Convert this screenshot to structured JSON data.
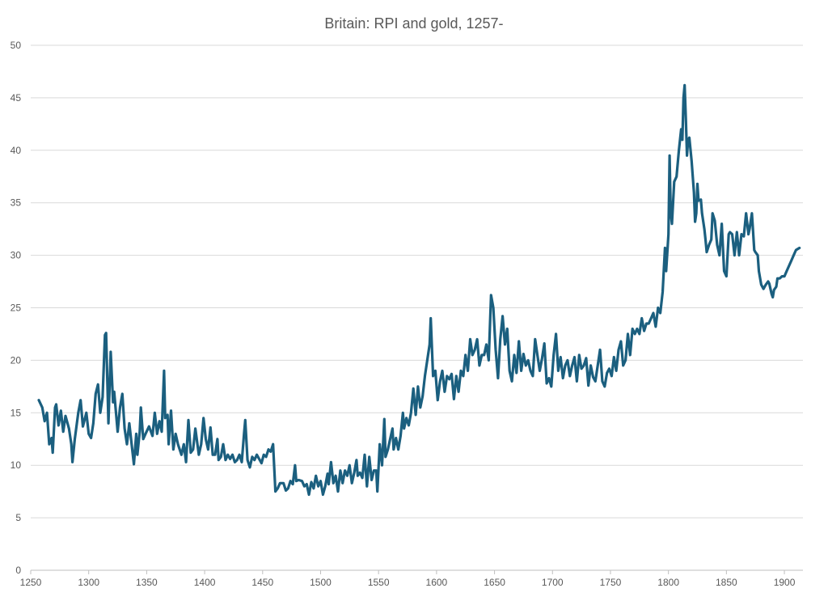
{
  "chart_data": {
    "type": "line",
    "title": "Britain: RPI and gold, 1257-",
    "xlabel": "",
    "ylabel": "",
    "xlim": [
      1250,
      1916
    ],
    "ylim": [
      0,
      50
    ],
    "x_ticks": [
      1250,
      1300,
      1350,
      1400,
      1450,
      1500,
      1550,
      1600,
      1650,
      1700,
      1750,
      1800,
      1850,
      1900
    ],
    "y_ticks": [
      0,
      5,
      10,
      15,
      20,
      25,
      30,
      35,
      40,
      45,
      50
    ],
    "grid": true,
    "legend": "none",
    "color": "#1b5f7f",
    "series": [
      {
        "name": "RPI and gold",
        "x": [
          1257,
          1260,
          1262,
          1264,
          1266,
          1268,
          1269,
          1271,
          1272,
          1274,
          1276,
          1278,
          1280,
          1283,
          1285,
          1286,
          1288,
          1291,
          1293,
          1295,
          1298,
          1300,
          1302,
          1304,
          1306,
          1308,
          1310,
          1312,
          1314,
          1315,
          1317,
          1319,
          1321,
          1322,
          1325,
          1327,
          1329,
          1331,
          1333,
          1335,
          1337,
          1339,
          1341,
          1342,
          1344,
          1345,
          1347,
          1349,
          1352,
          1355,
          1357,
          1359,
          1361,
          1363,
          1365,
          1366,
          1368,
          1369,
          1371,
          1373,
          1375,
          1377,
          1380,
          1382,
          1384,
          1386,
          1388,
          1390,
          1392,
          1395,
          1397,
          1399,
          1401,
          1403,
          1405,
          1407,
          1409,
          1411,
          1412,
          1414,
          1416,
          1418,
          1420,
          1422,
          1424,
          1426,
          1428,
          1430,
          1432,
          1434,
          1435,
          1437,
          1439,
          1441,
          1443,
          1445,
          1447,
          1449,
          1451,
          1453,
          1455,
          1457,
          1459,
          1461,
          1463,
          1465,
          1468,
          1470,
          1472,
          1474,
          1476,
          1478,
          1479,
          1481,
          1484,
          1486,
          1488,
          1490,
          1492,
          1494,
          1496,
          1498,
          1500,
          1502,
          1504,
          1506,
          1507,
          1509,
          1511,
          1513,
          1515,
          1517,
          1519,
          1521,
          1523,
          1525,
          1527,
          1529,
          1531,
          1532,
          1534,
          1536,
          1538,
          1540,
          1542,
          1544,
          1546,
          1548,
          1549,
          1551,
          1553,
          1555,
          1556,
          1558,
          1560,
          1562,
          1563,
          1565,
          1567,
          1569,
          1571,
          1572,
          1574,
          1576,
          1578,
          1580,
          1582,
          1584,
          1586,
          1588,
          1590,
          1592,
          1594,
          1595,
          1597,
          1599,
          1601,
          1603,
          1605,
          1607,
          1609,
          1611,
          1613,
          1615,
          1617,
          1619,
          1621,
          1623,
          1625,
          1627,
          1629,
          1631,
          1633,
          1635,
          1637,
          1639,
          1641,
          1643,
          1645,
          1646,
          1647,
          1649,
          1651,
          1653,
          1655,
          1657,
          1659,
          1661,
          1663,
          1665,
          1667,
          1669,
          1671,
          1673,
          1675,
          1677,
          1679,
          1681,
          1683,
          1685,
          1687,
          1689,
          1691,
          1693,
          1695,
          1697,
          1699,
          1701,
          1703,
          1705,
          1707,
          1709,
          1711,
          1713,
          1715,
          1717,
          1719,
          1721,
          1723,
          1725,
          1727,
          1729,
          1731,
          1733,
          1735,
          1737,
          1739,
          1741,
          1743,
          1745,
          1747,
          1749,
          1751,
          1753,
          1755,
          1757,
          1759,
          1761,
          1763,
          1765,
          1767,
          1769,
          1771,
          1773,
          1775,
          1777,
          1779,
          1781,
          1783,
          1785,
          1787,
          1789,
          1791,
          1793,
          1795,
          1797,
          1798,
          1800,
          1801,
          1802,
          1803,
          1805,
          1807,
          1809,
          1811,
          1812,
          1813,
          1814,
          1815,
          1816,
          1817,
          1818,
          1820,
          1822,
          1823,
          1824,
          1825,
          1826,
          1828,
          1829,
          1831,
          1832,
          1833,
          1835,
          1837,
          1838,
          1840,
          1842,
          1844,
          1846,
          1848,
          1850,
          1852,
          1853,
          1855,
          1857,
          1859,
          1861,
          1863,
          1865,
          1867,
          1869,
          1870,
          1872,
          1874,
          1875,
          1877,
          1878,
          1880,
          1882,
          1884,
          1886,
          1887,
          1889,
          1890,
          1891,
          1893,
          1894,
          1896,
          1898,
          1900,
          1902,
          1904,
          1906,
          1908,
          1910,
          1913
        ],
        "y": [
          16.2,
          15.5,
          14.2,
          15.0,
          12.0,
          12.6,
          11.2,
          15.5,
          15.8,
          13.8,
          15.2,
          13.2,
          14.7,
          13.5,
          12.0,
          10.3,
          12.5,
          15.0,
          16.2,
          13.7,
          15.0,
          13.0,
          12.6,
          14.0,
          16.8,
          17.7,
          15.0,
          16.5,
          22.4,
          22.6,
          14.0,
          20.8,
          16.0,
          17.0,
          13.2,
          15.5,
          16.8,
          13.5,
          12.0,
          14.0,
          12.0,
          10.1,
          13.0,
          11.0,
          13.2,
          15.5,
          12.5,
          13.0,
          13.7,
          12.8,
          15.0,
          13.0,
          14.2,
          13.2,
          19.0,
          14.5,
          14.8,
          12.0,
          15.2,
          11.5,
          13.0,
          12.0,
          11.0,
          12.0,
          10.3,
          14.3,
          11.2,
          11.5,
          13.5,
          11.0,
          12.0,
          14.5,
          12.5,
          11.5,
          13.6,
          11.0,
          11.0,
          12.5,
          10.5,
          10.8,
          12.0,
          10.5,
          11.0,
          10.6,
          11.0,
          10.3,
          10.5,
          11.0,
          10.3,
          13.0,
          14.3,
          10.5,
          9.8,
          10.8,
          10.5,
          11.0,
          10.6,
          10.2,
          11.0,
          10.8,
          11.5,
          11.3,
          12.0,
          7.5,
          7.8,
          8.3,
          8.3,
          7.6,
          7.8,
          8.5,
          8.2,
          10.0,
          8.5,
          8.6,
          8.5,
          8.0,
          8.2,
          7.2,
          8.4,
          7.8,
          9.0,
          8.0,
          8.5,
          7.2,
          8.0,
          9.2,
          8.2,
          10.3,
          8.3,
          9.0,
          7.5,
          9.5,
          8.3,
          9.5,
          9.0,
          10.0,
          8.3,
          9.3,
          10.5,
          9.0,
          9.3,
          8.8,
          11.0,
          8.0,
          10.8,
          8.6,
          9.5,
          9.5,
          7.5,
          12.0,
          10.0,
          14.4,
          10.8,
          11.5,
          12.5,
          13.5,
          11.5,
          12.6,
          11.5,
          12.8,
          15.0,
          13.5,
          14.5,
          13.8,
          15.0,
          17.3,
          14.8,
          17.5,
          15.5,
          16.6,
          18.5,
          20.0,
          21.5,
          24.0,
          18.5,
          19.0,
          16.2,
          18.0,
          19.0,
          17.0,
          18.5,
          18.2,
          18.7,
          16.3,
          18.5,
          17.0,
          19.0,
          18.5,
          20.5,
          19.0,
          22.0,
          20.5,
          21.0,
          22.0,
          19.5,
          20.5,
          20.5,
          21.5,
          20.0,
          23.0,
          26.2,
          25.0,
          21.0,
          18.3,
          22.0,
          24.2,
          21.5,
          23.0,
          19.0,
          18.0,
          20.5,
          18.8,
          21.8,
          19.0,
          20.6,
          19.5,
          20.0,
          19.0,
          18.5,
          22.0,
          20.5,
          19.0,
          20.2,
          21.6,
          17.8,
          18.3,
          17.5,
          20.5,
          22.5,
          19.0,
          20.3,
          18.3,
          19.5,
          20.0,
          18.5,
          19.5,
          20.3,
          18.0,
          20.5,
          19.2,
          19.5,
          20.2,
          17.6,
          19.5,
          18.4,
          18.0,
          19.5,
          21.0,
          18.0,
          17.5,
          18.8,
          19.2,
          18.5,
          20.3,
          19.0,
          21.0,
          21.8,
          19.5,
          20.0,
          22.5,
          20.5,
          23.0,
          22.5,
          23.0,
          22.5,
          24.0,
          22.8,
          23.5,
          23.5,
          24.0,
          24.5,
          23.2,
          25.0,
          24.5,
          26.5,
          30.7,
          28.5,
          32.0,
          39.5,
          34.0,
          33.0,
          37.0,
          37.5,
          40.0,
          42.0,
          41.0,
          45.0,
          46.2,
          43.0,
          39.5,
          41.0,
          41.2,
          39.0,
          36.0,
          33.2,
          34.0,
          36.8,
          35.2,
          35.3,
          34.0,
          32.5,
          31.5,
          30.3,
          31.0,
          31.5,
          34.0,
          33.3,
          31.0,
          30.0,
          33.0,
          28.5,
          28.0,
          32.0,
          32.2,
          32.0,
          30.0,
          32.2,
          30.0,
          32.0,
          31.8,
          34.0,
          32.0,
          32.5,
          34.0,
          30.5,
          30.3,
          30.0,
          28.5,
          27.2,
          26.8,
          27.2,
          27.5,
          27.3,
          26.3,
          26.0,
          26.7,
          27.0,
          27.8,
          27.8,
          28.0,
          28.0,
          28.5,
          29.0,
          29.5,
          30.0,
          30.5,
          30.7
        ]
      }
    ]
  }
}
